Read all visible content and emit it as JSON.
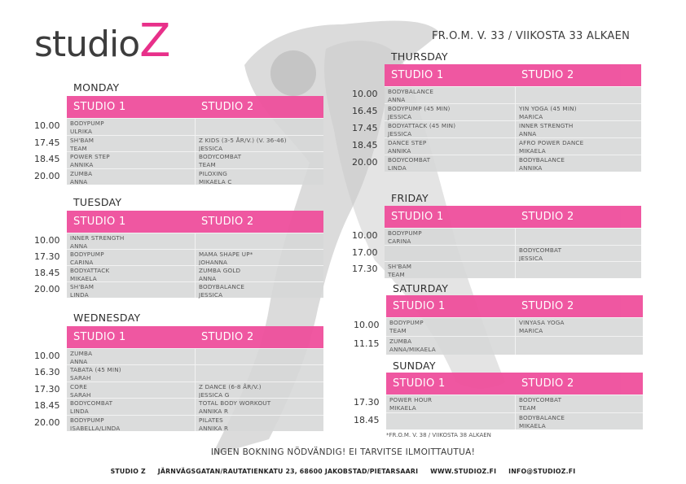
{
  "logo": {
    "text": "studio",
    "accent": "Z"
  },
  "header_note": "FR.O.M. V. 33 / VIIKOSTA 33 ALKAEN",
  "studio_labels": [
    "STUDIO 1",
    "STUDIO 2"
  ],
  "colors": {
    "accent": "#ef4f9c",
    "row_bg": "#d7d8d8"
  },
  "days": [
    {
      "name": "MONDAY",
      "rows": [
        {
          "time": "10.00",
          "s1": [
            "BODYPUMP",
            "ULRIKA"
          ],
          "s2": [
            "",
            ""
          ]
        },
        {
          "time": "17.45",
          "s1": [
            "SH'BAM",
            "TEAM"
          ],
          "s2": [
            "Z KIDS (3-5 ÅR/V.) (V. 36-46)",
            "JESSICA"
          ]
        },
        {
          "time": "18.45",
          "s1": [
            "POWER STEP",
            "ANNIKA"
          ],
          "s2": [
            "BODYCOMBAT",
            "TEAM"
          ]
        },
        {
          "time": "20.00",
          "s1": [
            "ZUMBA",
            "ANNA"
          ],
          "s2": [
            "PILOXING",
            "MIKAELA C"
          ]
        }
      ]
    },
    {
      "name": "TUESDAY",
      "rows": [
        {
          "time": "10.00",
          "s1": [
            "INNER STRENGTH",
            "ANNA"
          ],
          "s2": [
            "",
            ""
          ]
        },
        {
          "time": "17.30",
          "s1": [
            "BODYPUMP",
            "CARINA"
          ],
          "s2": [
            "MAMA SHAPE UP*",
            "JOHANNA"
          ]
        },
        {
          "time": "18.45",
          "s1": [
            "BODYATTACK",
            "MIKAELA"
          ],
          "s2": [
            "ZUMBA GOLD",
            "ANNA"
          ]
        },
        {
          "time": "20.00",
          "s1": [
            "SH'BAM",
            "LINDA"
          ],
          "s2": [
            "BODYBALANCE",
            "JESSICA"
          ]
        }
      ]
    },
    {
      "name": "WEDNESDAY",
      "rows": [
        {
          "time": "10.00",
          "s1": [
            "ZUMBA",
            "ANNA"
          ],
          "s2": [
            "",
            ""
          ]
        },
        {
          "time": "16.30",
          "s1": [
            "TABATA (45 MIN)",
            "SARAH"
          ],
          "s2": [
            "",
            ""
          ]
        },
        {
          "time": "17.30",
          "s1": [
            "CORE",
            "SARAH"
          ],
          "s2": [
            "Z DANCE (6-8 ÅR/V.)",
            "JESSICA G"
          ]
        },
        {
          "time": "18.45",
          "s1": [
            "BODYCOMBAT",
            "LINDA"
          ],
          "s2": [
            "TOTAL BODY WORKOUT",
            "ANNIKA R"
          ]
        },
        {
          "time": "20.00",
          "s1": [
            "BODYPUMP",
            "ISABELLA/LINDA"
          ],
          "s2": [
            "PILATES",
            "ANNIKA R"
          ]
        }
      ]
    },
    {
      "name": "THURSDAY",
      "rows": [
        {
          "time": "10.00",
          "s1": [
            "BODYBALANCE",
            "ANNA"
          ],
          "s2": [
            "",
            ""
          ]
        },
        {
          "time": "16.45",
          "s1": [
            "BODYPUMP (45 MIN)",
            "JESSICA"
          ],
          "s2": [
            "YIN YOGA (45 MIN)",
            "MARICA"
          ]
        },
        {
          "time": "17.45",
          "s1": [
            "BODYATTACK (45 MIN)",
            "JESSICA"
          ],
          "s2": [
            "INNER STRENGTH",
            "ANNA"
          ]
        },
        {
          "time": "18.45",
          "s1": [
            "DANCE STEP",
            "ANNIKA"
          ],
          "s2": [
            "AFRO POWER DANCE",
            "MIKAELA"
          ]
        },
        {
          "time": "20.00",
          "s1": [
            "BODYCOMBAT",
            "LINDA"
          ],
          "s2": [
            "BODYBALANCE",
            "ANNIKA"
          ]
        }
      ]
    },
    {
      "name": "FRIDAY",
      "rows": [
        {
          "time": "10.00",
          "s1": [
            "BODYPUMP",
            "CARINA"
          ],
          "s2": [
            "",
            ""
          ]
        },
        {
          "time": "17.00",
          "s1": [
            "",
            ""
          ],
          "s2": [
            "BODYCOMBAT",
            "JESSICA"
          ]
        },
        {
          "time": "17.30",
          "s1": [
            "SH'BAM",
            "TEAM"
          ],
          "s2": [
            "",
            ""
          ]
        }
      ]
    },
    {
      "name": "SATURDAY",
      "rows": [
        {
          "time": "10.00",
          "s1": [
            "BODYPUMP",
            "TEAM"
          ],
          "s2": [
            "VINYASA YOGA",
            "MARICA"
          ]
        },
        {
          "time": "11.15",
          "s1": [
            "ZUMBA",
            "ANNA/MIKAELA"
          ],
          "s2": [
            "",
            ""
          ]
        }
      ]
    },
    {
      "name": "SUNDAY",
      "rows": [
        {
          "time": "17.30",
          "s1": [
            "POWER HOUR",
            "MIKAELA"
          ],
          "s2": [
            "BODYCOMBAT",
            "TEAM"
          ]
        },
        {
          "time": "18.45",
          "s1": [
            "",
            ""
          ],
          "s2": [
            "BODYBALANCE",
            "MIKAELA"
          ]
        }
      ]
    }
  ],
  "footnote": "*FR.O.M. V. 38 / VIIKOSTA 38 ALKAEN",
  "slogan": "INGEN BOKNING NÖDVÄNDIG! EI TARVITSE ILMOITTAUTUA!",
  "contact": {
    "name": "STUDIO Z",
    "address": "JÄRNVÄGSGATAN/RAUTATIENKATU 23, 68600 JAKOBSTAD/PIETARSAARI",
    "web": "WWW.STUDIOZ.FI",
    "email": "INFO@STUDIOZ.FI"
  }
}
